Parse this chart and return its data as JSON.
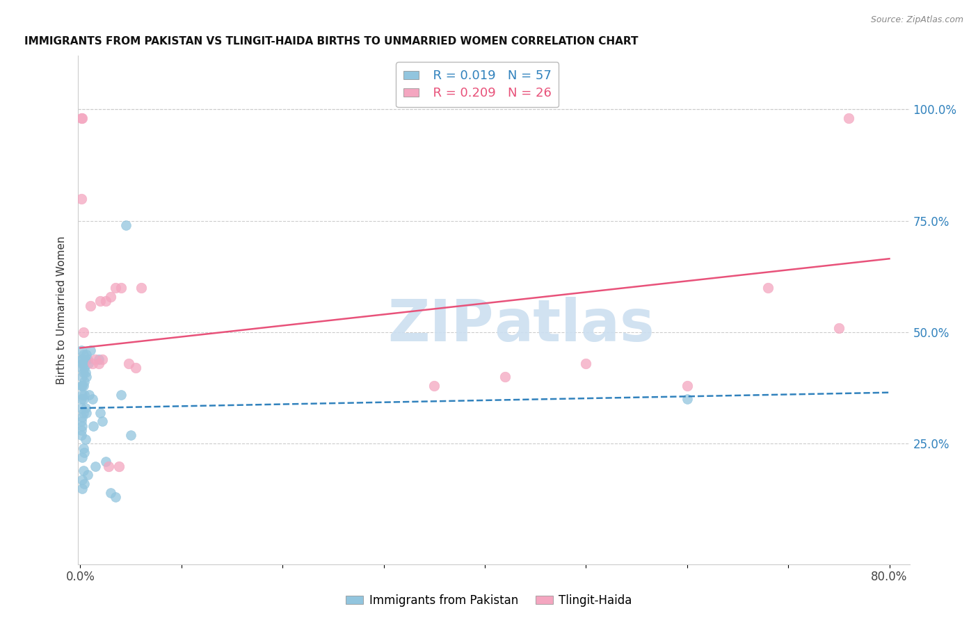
{
  "title": "IMMIGRANTS FROM PAKISTAN VS TLINGIT-HAIDA BIRTHS TO UNMARRIED WOMEN CORRELATION CHART",
  "source": "Source: ZipAtlas.com",
  "ylabel": "Births to Unmarried Women",
  "legend_label1": "Immigrants from Pakistan",
  "legend_label2": "Tlingit-Haida",
  "R1": "0.019",
  "N1": "57",
  "R2": "0.209",
  "N2": "26",
  "color_blue": "#92c5de",
  "color_pink": "#f4a6c0",
  "color_blue_dark": "#3182bd",
  "color_pink_dark": "#e8527a",
  "watermark_color": "#ccdff0",
  "right_yticks": [
    "100.0%",
    "75.0%",
    "50.0%",
    "25.0%"
  ],
  "right_ytick_values": [
    1.0,
    0.75,
    0.5,
    0.25
  ],
  "blue_points_x": [
    0.001,
    0.001,
    0.001,
    0.001,
    0.001,
    0.001,
    0.001,
    0.001,
    0.001,
    0.002,
    0.002,
    0.002,
    0.002,
    0.002,
    0.002,
    0.002,
    0.002,
    0.002,
    0.002,
    0.003,
    0.003,
    0.003,
    0.003,
    0.003,
    0.003,
    0.003,
    0.003,
    0.004,
    0.004,
    0.004,
    0.004,
    0.004,
    0.005,
    0.005,
    0.005,
    0.005,
    0.006,
    0.006,
    0.006,
    0.007,
    0.007,
    0.008,
    0.009,
    0.01,
    0.012,
    0.013,
    0.015,
    0.018,
    0.02,
    0.022,
    0.025,
    0.03,
    0.035,
    0.04,
    0.045,
    0.05,
    0.6
  ],
  "blue_points_y": [
    0.38,
    0.42,
    0.44,
    0.46,
    0.35,
    0.3,
    0.28,
    0.33,
    0.27,
    0.4,
    0.43,
    0.38,
    0.44,
    0.36,
    0.31,
    0.29,
    0.22,
    0.17,
    0.15,
    0.45,
    0.43,
    0.41,
    0.38,
    0.35,
    0.32,
    0.24,
    0.19,
    0.42,
    0.39,
    0.36,
    0.23,
    0.16,
    0.44,
    0.41,
    0.33,
    0.26,
    0.45,
    0.4,
    0.32,
    0.44,
    0.18,
    0.43,
    0.36,
    0.46,
    0.35,
    0.29,
    0.2,
    0.44,
    0.32,
    0.3,
    0.21,
    0.14,
    0.13,
    0.36,
    0.74,
    0.27,
    0.35
  ],
  "pink_points_x": [
    0.001,
    0.001,
    0.002,
    0.003,
    0.01,
    0.012,
    0.015,
    0.018,
    0.02,
    0.022,
    0.025,
    0.028,
    0.03,
    0.035,
    0.038,
    0.04,
    0.048,
    0.055,
    0.06,
    0.35,
    0.42,
    0.5,
    0.6,
    0.68,
    0.75,
    0.76
  ],
  "pink_points_y": [
    0.98,
    0.8,
    0.98,
    0.5,
    0.56,
    0.43,
    0.44,
    0.43,
    0.57,
    0.44,
    0.57,
    0.2,
    0.58,
    0.6,
    0.2,
    0.6,
    0.43,
    0.42,
    0.6,
    0.38,
    0.4,
    0.43,
    0.38,
    0.6,
    0.51,
    0.98
  ],
  "blue_line_x": [
    0.0,
    0.8
  ],
  "blue_line_y": [
    0.33,
    0.365
  ],
  "pink_line_x": [
    0.0,
    0.8
  ],
  "pink_line_y": [
    0.465,
    0.665
  ],
  "xlim": [
    -0.002,
    0.82
  ],
  "ylim": [
    -0.02,
    1.12
  ],
  "xtick_positions": [
    0.0,
    0.1,
    0.2,
    0.3,
    0.4,
    0.5,
    0.6,
    0.7,
    0.8
  ],
  "xtick_labels": [
    "0.0%",
    "",
    "",
    "",
    "",
    "",
    "",
    "",
    "80.0%"
  ]
}
